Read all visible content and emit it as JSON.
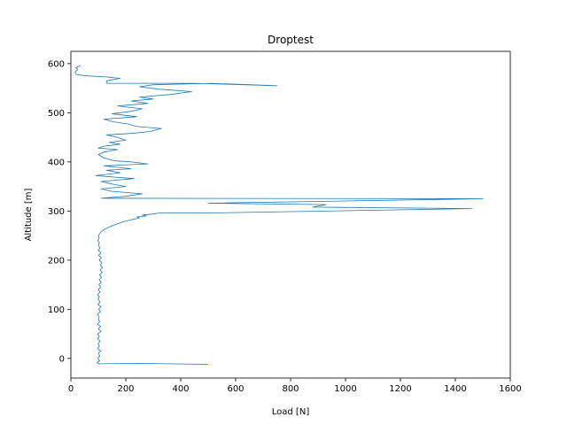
{
  "chart_data": {
    "type": "line",
    "title": "Droptest",
    "xlabel": "Load [N]",
    "ylabel": "Altitude [m]",
    "xlim": [
      0,
      1600
    ],
    "ylim": [
      -40,
      625
    ],
    "xticks": [
      0,
      200,
      400,
      600,
      800,
      1000,
      1200,
      1400,
      1600
    ],
    "yticks": [
      0,
      100,
      200,
      300,
      400,
      500,
      600
    ],
    "grid": false,
    "legend": null,
    "series": [
      {
        "color": "#1f77b4",
        "points": [
          [
            500,
            -12
          ],
          [
            250,
            -10
          ],
          [
            100,
            -11
          ],
          [
            95,
            -8
          ],
          [
            105,
            -5
          ],
          [
            98,
            0
          ],
          [
            105,
            5
          ],
          [
            100,
            10
          ],
          [
            108,
            15
          ],
          [
            97,
            20
          ],
          [
            104,
            25
          ],
          [
            99,
            30
          ],
          [
            106,
            35
          ],
          [
            98,
            40
          ],
          [
            104,
            45
          ],
          [
            97,
            50
          ],
          [
            110,
            55
          ],
          [
            100,
            60
          ],
          [
            108,
            65
          ],
          [
            96,
            70
          ],
          [
            105,
            75
          ],
          [
            100,
            80
          ],
          [
            103,
            85
          ],
          [
            96,
            90
          ],
          [
            108,
            95
          ],
          [
            101,
            100
          ],
          [
            110,
            105
          ],
          [
            98,
            110
          ],
          [
            106,
            115
          ],
          [
            99,
            120
          ],
          [
            104,
            125
          ],
          [
            97,
            130
          ],
          [
            106,
            135
          ],
          [
            100,
            140
          ],
          [
            108,
            145
          ],
          [
            102,
            150
          ],
          [
            110,
            155
          ],
          [
            103,
            160
          ],
          [
            112,
            165
          ],
          [
            104,
            170
          ],
          [
            114,
            175
          ],
          [
            106,
            180
          ],
          [
            115,
            185
          ],
          [
            107,
            190
          ],
          [
            113,
            195
          ],
          [
            103,
            200
          ],
          [
            111,
            205
          ],
          [
            101,
            210
          ],
          [
            109,
            215
          ],
          [
            99,
            220
          ],
          [
            106,
            225
          ],
          [
            100,
            230
          ],
          [
            104,
            235
          ],
          [
            98,
            240
          ],
          [
            103,
            245
          ],
          [
            100,
            250
          ],
          [
            106,
            255
          ],
          [
            110,
            258
          ],
          [
            120,
            262
          ],
          [
            135,
            266
          ],
          [
            150,
            270
          ],
          [
            170,
            274
          ],
          [
            190,
            278
          ],
          [
            210,
            281
          ],
          [
            235,
            284
          ],
          [
            250,
            286
          ],
          [
            240,
            288
          ],
          [
            275,
            290
          ],
          [
            260,
            292
          ],
          [
            300,
            294
          ],
          [
            320,
            296
          ],
          [
            500,
            296
          ],
          [
            1460,
            305
          ],
          [
            880,
            308
          ],
          [
            930,
            313
          ],
          [
            500,
            316
          ],
          [
            1500,
            325
          ],
          [
            110,
            326
          ],
          [
            200,
            330
          ],
          [
            260,
            335
          ],
          [
            150,
            340
          ],
          [
            110,
            345
          ],
          [
            200,
            350
          ],
          [
            150,
            355
          ],
          [
            110,
            360
          ],
          [
            230,
            366
          ],
          [
            90,
            372
          ],
          [
            180,
            378
          ],
          [
            130,
            383
          ],
          [
            220,
            386
          ],
          [
            120,
            392
          ],
          [
            280,
            396
          ],
          [
            220,
            400
          ],
          [
            160,
            402
          ],
          [
            120,
            408
          ],
          [
            100,
            415
          ],
          [
            120,
            420
          ],
          [
            170,
            425
          ],
          [
            100,
            428
          ],
          [
            120,
            432
          ],
          [
            180,
            436
          ],
          [
            140,
            440
          ],
          [
            200,
            444
          ],
          [
            170,
            450
          ],
          [
            130,
            455
          ],
          [
            220,
            458
          ],
          [
            290,
            462
          ],
          [
            330,
            468
          ],
          [
            240,
            472
          ],
          [
            210,
            477
          ],
          [
            150,
            482
          ],
          [
            120,
            487
          ],
          [
            240,
            492
          ],
          [
            150,
            498
          ],
          [
            220,
            503
          ],
          [
            260,
            508
          ],
          [
            170,
            514
          ],
          [
            280,
            519
          ],
          [
            220,
            524
          ],
          [
            300,
            528
          ],
          [
            250,
            532
          ],
          [
            360,
            537
          ],
          [
            440,
            543
          ],
          [
            320,
            548
          ],
          [
            250,
            553
          ],
          [
            300,
            557
          ],
          [
            510,
            560
          ],
          [
            750,
            555
          ],
          [
            460,
            560
          ],
          [
            130,
            560
          ],
          [
            130,
            565
          ],
          [
            180,
            570
          ],
          [
            130,
            573
          ],
          [
            60,
            575
          ],
          [
            20,
            578
          ],
          [
            15,
            583
          ],
          [
            25,
            588
          ],
          [
            18,
            592
          ],
          [
            35,
            596
          ]
        ]
      }
    ]
  }
}
